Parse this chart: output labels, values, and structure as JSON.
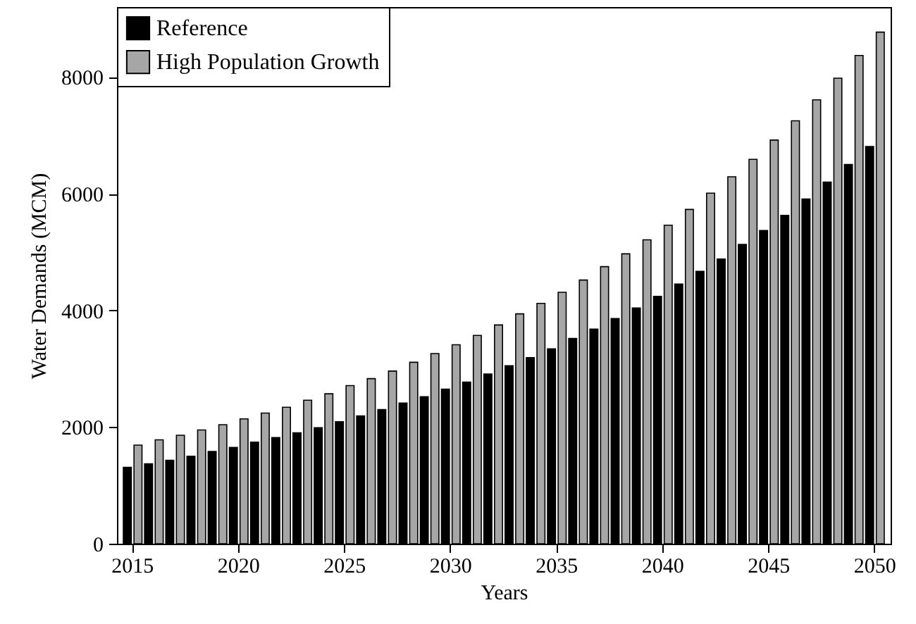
{
  "chart_data": {
    "type": "bar",
    "xlabel": "Years",
    "ylabel": "Water Demands (MCM)",
    "categories": [
      "2015",
      null,
      null,
      null,
      null,
      "2020",
      null,
      null,
      null,
      null,
      "2025",
      null,
      null,
      null,
      null,
      "2030",
      null,
      null,
      null,
      null,
      "2035",
      null,
      null,
      null,
      null,
      "2040",
      null,
      null,
      null,
      null,
      "2045",
      null,
      null,
      null,
      null,
      "2050"
    ],
    "series": [
      {
        "name": "Reference",
        "color": "#000000",
        "values": [
          1310,
          1370,
          1430,
          1500,
          1580,
          1650,
          1740,
          1820,
          1900,
          1990,
          2090,
          2190,
          2300,
          2410,
          2520,
          2650,
          2770,
          2910,
          3050,
          3190,
          3340,
          3520,
          3680,
          3860,
          4040,
          4240,
          4450,
          4670,
          4880,
          5130,
          5370,
          5630,
          5910,
          6200,
          6500,
          6810
        ]
      },
      {
        "name": "High Population Growth",
        "color": "#a6a6a6",
        "values": [
          1690,
          1780,
          1860,
          1950,
          2040,
          2140,
          2240,
          2340,
          2460,
          2570,
          2710,
          2830,
          2960,
          3110,
          3260,
          3410,
          3570,
          3750,
          3940,
          4120,
          4310,
          4520,
          4750,
          4970,
          5210,
          5460,
          5730,
          6010,
          6290,
          6590,
          6920,
          7250,
          7610,
          7980,
          8370,
          8770
        ]
      }
    ],
    "ylim": [
      0,
      9200
    ],
    "yticks": [
      0,
      2000,
      4000,
      6000,
      8000
    ],
    "legend": "top left"
  }
}
